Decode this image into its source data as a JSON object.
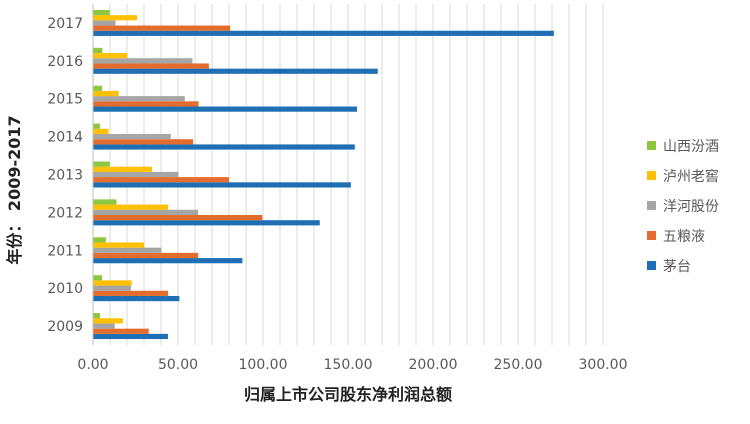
{
  "chart_data": {
    "type": "bar",
    "orientation": "horizontal",
    "categories": [
      "2009",
      "2010",
      "2011",
      "2012",
      "2013",
      "2014",
      "2015",
      "2016",
      "2017"
    ],
    "series": [
      {
        "name": "茅台",
        "color": "#1f6fb4",
        "values": [
          43.8,
          50.5,
          87.6,
          133.1,
          151.4,
          153.7,
          155.0,
          167.2,
          270.8
        ]
      },
      {
        "name": "五粮液",
        "color": "#e46c2c",
        "values": [
          32.5,
          43.9,
          61.6,
          99.3,
          79.7,
          58.6,
          61.8,
          67.9,
          80.4
        ]
      },
      {
        "name": "洋河股份",
        "color": "#a5a5a5",
        "values": [
          12.5,
          22.0,
          40.0,
          61.5,
          50.0,
          45.5,
          53.7,
          58.2,
          13.0
        ]
      },
      {
        "name": "泸州老窖",
        "color": "#ffc000",
        "values": [
          17.3,
          22.5,
          29.9,
          43.9,
          34.4,
          8.8,
          14.8,
          19.9,
          25.6
        ]
      },
      {
        "name": "山西汾酒",
        "color": "#8dc63f",
        "values": [
          3.8,
          5.0,
          7.3,
          13.5,
          9.5,
          3.8,
          5.0,
          5.2,
          9.5
        ]
      }
    ],
    "legend_order": [
      "山西汾酒",
      "泸州老窖",
      "洋河股份",
      "五粮液",
      "茅台"
    ],
    "x_ticks": [
      "0.00",
      "50.00",
      "100.00",
      "150.00",
      "200.00",
      "250.00",
      "300.00"
    ],
    "xlim": [
      0,
      300
    ],
    "xlabel": "归属上市公司股东净利润总额",
    "ylabel": "年份：  2009-2017",
    "grid": "vertical",
    "legend_position": "right"
  }
}
